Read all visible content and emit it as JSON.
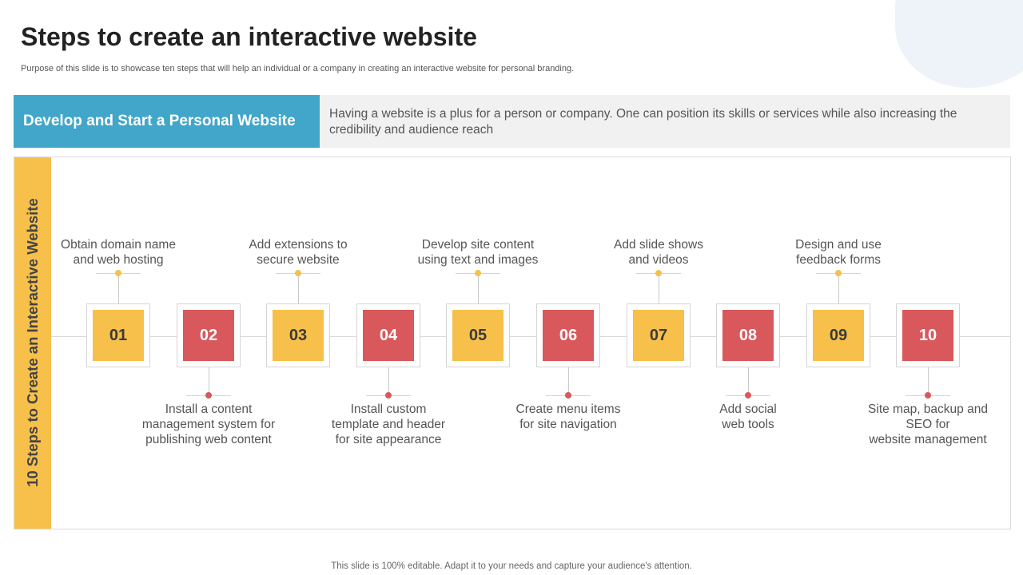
{
  "title": "Steps to create an interactive website",
  "subtitle": "Purpose of this slide is to showcase ten steps that will help an individual or a company in creating an interactive website for personal branding.",
  "banner": {
    "label": "Develop and Start a Personal Website",
    "description": "Having a website is a plus for a person or company.  One can position its skills or services while also increasing the credibility and audience reach"
  },
  "sidebar_label": "10 Steps to Create an Interactive Website",
  "steps": [
    {
      "number": "01",
      "color": "yellow",
      "position": "top",
      "label": "Obtain domain name\nand web hosting"
    },
    {
      "number": "02",
      "color": "red",
      "position": "bottom",
      "label": "Install  a content\nmanagement system for\npublishing web content"
    },
    {
      "number": "03",
      "color": "yellow",
      "position": "top",
      "label": "Add extensions to\nsecure website"
    },
    {
      "number": "04",
      "color": "red",
      "position": "bottom",
      "label": "Install  custom\ntemplate and header\nfor site appearance"
    },
    {
      "number": "05",
      "color": "yellow",
      "position": "top",
      "label": "Develop site content\nusing text and images"
    },
    {
      "number": "06",
      "color": "red",
      "position": "bottom",
      "label": "Create menu items\nfor site navigation"
    },
    {
      "number": "07",
      "color": "yellow",
      "position": "top",
      "label": "Add slide shows\nand videos"
    },
    {
      "number": "08",
      "color": "red",
      "position": "bottom",
      "label": "Add social\nweb tools"
    },
    {
      "number": "09",
      "color": "yellow",
      "position": "top",
      "label": "Design and use\nfeedback forms"
    },
    {
      "number": "10",
      "color": "red",
      "position": "bottom",
      "label": "Site map, backup and\nSEO for\nwebsite management"
    }
  ],
  "colors": {
    "accent_blue": "#41a6c9",
    "yellow": "#f6c04b",
    "red": "#d9585b"
  },
  "footer": "This slide is 100% editable. Adapt it to your needs and capture your audience's attention."
}
